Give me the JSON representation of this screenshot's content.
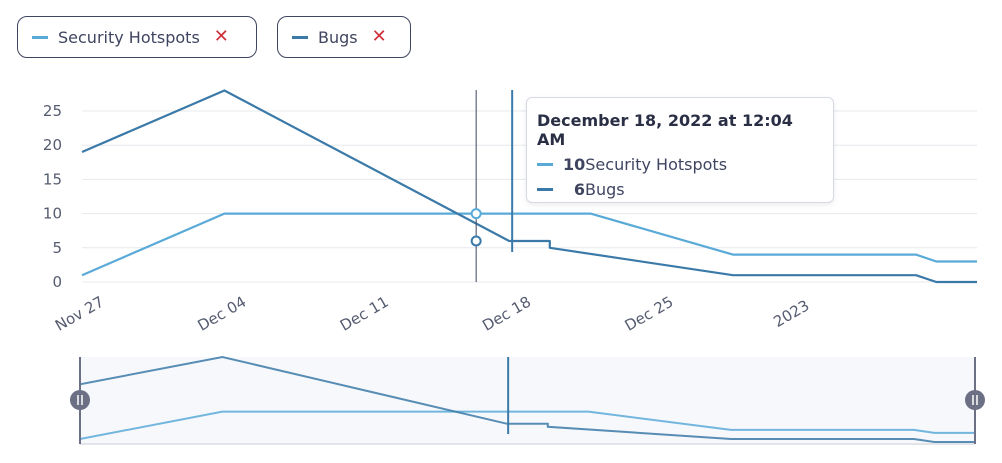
{
  "legend": [
    {
      "label": "Security Hotspots",
      "color": "#5aaad8"
    },
    {
      "label": "Bugs",
      "color": "#3b7aa8"
    }
  ],
  "remove_glyph": "✕",
  "tooltip": {
    "title": "December 18, 2022 at 12:04 AM",
    "rows": [
      {
        "value": "10",
        "label": "Security Hotspots",
        "color": "#5aaad8"
      },
      {
        "value": "6",
        "label": "Bugs",
        "color": "#3b7aa8"
      }
    ]
  },
  "chart_data": {
    "type": "line",
    "x_type": "date",
    "y_ticks": [
      0,
      5,
      10,
      15,
      20,
      25
    ],
    "ylim": [
      0,
      28
    ],
    "x_ticks": [
      "Nov 27",
      "Dec 04",
      "Dec 11",
      "Dec 18",
      "Dec 25",
      "2023"
    ],
    "x_tick_dates": [
      "2022-11-27",
      "2022-12-04",
      "2022-12-11",
      "2022-12-18",
      "2022-12-25",
      "2023-01-01"
    ],
    "x_range": [
      "2022-11-27",
      "2023-01-10"
    ],
    "hover_date": "2022-12-18",
    "series": [
      {
        "name": "Security Hotspots",
        "color": "#5aaad8",
        "points": [
          [
            "2022-11-27",
            1
          ],
          [
            "2022-12-04",
            10
          ],
          [
            "2022-12-18",
            10
          ],
          [
            "2022-12-22",
            10
          ],
          [
            "2022-12-29",
            4
          ],
          [
            "2023-01-07",
            4
          ],
          [
            "2023-01-08",
            3
          ],
          [
            "2023-01-10",
            3
          ]
        ]
      },
      {
        "name": "Bugs",
        "color": "#3b7aa8",
        "points": [
          [
            "2022-11-27",
            19
          ],
          [
            "2022-12-04",
            28
          ],
          [
            "2022-12-18",
            6
          ],
          [
            "2022-12-20",
            6
          ],
          [
            "2022-12-20",
            5
          ],
          [
            "2022-12-29",
            1
          ],
          [
            "2023-01-07",
            1
          ],
          [
            "2023-01-08",
            0
          ],
          [
            "2023-01-10",
            0
          ]
        ]
      }
    ]
  }
}
